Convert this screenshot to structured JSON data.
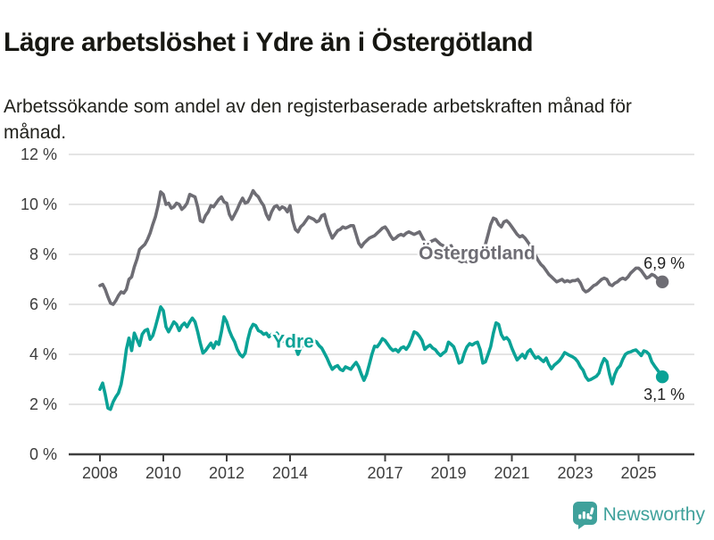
{
  "header": {
    "title": "Lägre arbetslöshet i Ydre än i Östergötland",
    "subtitle": "Arbetssökande som andel av den registerbaserade arbetskraften månad för månad."
  },
  "footer": {
    "brand": "Newsworthy"
  },
  "colors": {
    "grid": "#dbdbdb",
    "axis": "#3f3f3f",
    "tick_text": "#3d3d3d",
    "oster": "#6e6d74",
    "ydre": "#0aa296",
    "value_label": "#1f1f1f",
    "brand_teal": "#3fa19b"
  },
  "chart_data": {
    "type": "line",
    "xlabel": "",
    "ylabel": "",
    "x_start": 2008.0,
    "x_step_months": 1,
    "xticks": [
      2008,
      2010,
      2012,
      2014,
      2017,
      2019,
      2021,
      2023,
      2025
    ],
    "yticks": [
      0,
      2,
      4,
      6,
      8,
      10,
      12
    ],
    "ytick_suffix": " %",
    "ylim": [
      0,
      12
    ],
    "xlim": [
      2007.0,
      2027.1
    ],
    "grid": "horizontal",
    "legend_position": "inline-labels",
    "series": [
      {
        "id": "ostergotland",
        "name": "Östergötland",
        "color": "#6e6d74",
        "label_anchor": [
          2019.9,
          8.05
        ],
        "end_label": "6,9 %",
        "end_label_side": "above",
        "end_value": 6.9,
        "values": [
          6.75,
          6.8,
          6.6,
          6.3,
          6.05,
          6.0,
          6.15,
          6.35,
          6.5,
          6.45,
          6.6,
          7.0,
          7.1,
          7.5,
          7.8,
          8.2,
          8.3,
          8.4,
          8.6,
          8.85,
          9.2,
          9.5,
          9.95,
          10.5,
          10.4,
          10.0,
          10.05,
          9.85,
          9.9,
          10.05,
          10.0,
          9.8,
          9.9,
          10.05,
          10.4,
          10.35,
          10.3,
          9.9,
          9.35,
          9.3,
          9.55,
          9.7,
          9.95,
          9.9,
          10.05,
          10.2,
          10.3,
          10.1,
          10.05,
          9.6,
          9.4,
          9.6,
          9.8,
          10.05,
          10.25,
          10.05,
          10.1,
          10.3,
          10.55,
          10.4,
          10.3,
          10.1,
          9.95,
          9.6,
          9.4,
          9.7,
          9.9,
          9.95,
          9.8,
          9.9,
          9.85,
          9.7,
          9.95,
          9.35,
          9.0,
          8.9,
          9.1,
          9.2,
          9.35,
          9.5,
          9.45,
          9.4,
          9.3,
          9.35,
          9.55,
          9.6,
          9.2,
          8.9,
          8.65,
          8.8,
          8.95,
          9.0,
          9.1,
          9.05,
          9.1,
          9.15,
          9.15,
          8.8,
          8.45,
          8.3,
          8.45,
          8.55,
          8.65,
          8.7,
          8.75,
          8.85,
          8.95,
          9.05,
          9.1,
          8.95,
          8.75,
          8.6,
          8.65,
          8.75,
          8.8,
          8.75,
          8.85,
          8.9,
          8.85,
          8.8,
          8.85,
          8.9,
          8.7,
          8.5,
          8.4,
          8.5,
          8.55,
          8.6,
          8.5,
          8.4,
          8.35,
          8.3,
          8.3,
          8.35,
          8.1,
          7.9,
          7.75,
          7.7,
          7.75,
          7.7,
          7.8,
          7.85,
          7.9,
          7.95,
          8.0,
          8.1,
          8.4,
          8.8,
          9.2,
          9.45,
          9.4,
          9.2,
          9.1,
          9.3,
          9.35,
          9.25,
          9.1,
          8.95,
          8.8,
          8.7,
          8.75,
          8.65,
          8.5,
          8.35,
          8.15,
          7.95,
          7.75,
          7.6,
          7.5,
          7.35,
          7.2,
          7.1,
          7.0,
          6.9,
          6.95,
          7.0,
          6.9,
          6.95,
          6.9,
          6.95,
          6.95,
          7.0,
          6.85,
          6.6,
          6.5,
          6.55,
          6.65,
          6.75,
          6.8,
          6.9,
          7.0,
          7.05,
          7.0,
          6.8,
          6.75,
          6.85,
          6.9,
          7.0,
          7.05,
          7.0,
          7.1,
          7.25,
          7.35,
          7.45,
          7.45,
          7.35,
          7.2,
          7.05,
          7.1,
          7.2,
          7.15,
          7.05,
          6.95,
          6.9
        ]
      },
      {
        "id": "ydre",
        "name": "Ydre",
        "color": "#0aa296",
        "label_anchor": [
          2014.1,
          4.52
        ],
        "end_label": "3,1 %",
        "end_label_side": "below",
        "end_value": 3.1,
        "values": [
          2.6,
          2.85,
          2.4,
          1.85,
          1.8,
          2.1,
          2.3,
          2.45,
          2.8,
          3.4,
          4.2,
          4.65,
          4.15,
          4.85,
          4.6,
          4.35,
          4.8,
          4.95,
          5.0,
          4.6,
          4.75,
          5.1,
          5.5,
          5.9,
          5.75,
          5.1,
          4.9,
          5.1,
          5.3,
          5.2,
          4.95,
          5.15,
          5.25,
          5.1,
          5.3,
          5.45,
          5.3,
          4.9,
          4.45,
          4.05,
          4.15,
          4.3,
          4.45,
          4.25,
          4.5,
          4.4,
          4.9,
          5.5,
          5.3,
          4.95,
          4.7,
          4.5,
          4.2,
          4.0,
          3.9,
          4.05,
          4.6,
          5.0,
          5.2,
          5.15,
          4.95,
          4.9,
          4.8,
          4.85,
          4.7,
          4.8,
          4.75,
          4.85,
          4.7,
          4.55,
          4.5,
          4.45,
          4.4,
          4.45,
          4.3,
          4.0,
          4.25,
          4.4,
          4.35,
          4.3,
          4.4,
          4.55,
          4.5,
          4.35,
          4.25,
          4.05,
          3.85,
          3.6,
          3.4,
          3.5,
          3.55,
          3.4,
          3.35,
          3.5,
          3.45,
          3.4,
          3.55,
          3.68,
          3.5,
          3.2,
          2.96,
          3.2,
          3.6,
          4.0,
          4.33,
          4.3,
          4.45,
          4.63,
          4.55,
          4.4,
          4.25,
          4.15,
          4.2,
          4.1,
          4.25,
          4.3,
          4.2,
          4.35,
          4.6,
          4.9,
          4.85,
          4.72,
          4.55,
          4.2,
          4.3,
          4.37,
          4.25,
          4.19,
          4.05,
          3.95,
          4.05,
          4.13,
          4.49,
          4.4,
          4.3,
          4.0,
          3.65,
          3.7,
          4.05,
          4.3,
          4.43,
          4.37,
          4.45,
          4.49,
          4.19,
          3.65,
          3.7,
          4.0,
          4.31,
          4.85,
          5.26,
          5.2,
          4.79,
          4.61,
          4.67,
          4.55,
          4.25,
          4.0,
          3.78,
          3.89,
          4.0,
          3.85,
          4.1,
          4.19,
          4.0,
          3.85,
          3.9,
          3.8,
          3.71,
          3.85,
          3.6,
          3.42,
          3.56,
          3.65,
          3.75,
          3.89,
          4.07,
          4.01,
          3.95,
          3.9,
          3.83,
          3.7,
          3.5,
          3.36,
          3.1,
          2.96,
          3.0,
          3.06,
          3.12,
          3.25,
          3.6,
          3.83,
          3.71,
          3.2,
          2.82,
          3.2,
          3.43,
          3.54,
          3.8,
          4.0,
          4.07,
          4.1,
          4.15,
          4.18,
          4.07,
          3.95,
          4.14,
          4.1,
          4.0,
          3.7,
          3.54,
          3.4,
          3.25,
          3.1
        ]
      }
    ]
  }
}
